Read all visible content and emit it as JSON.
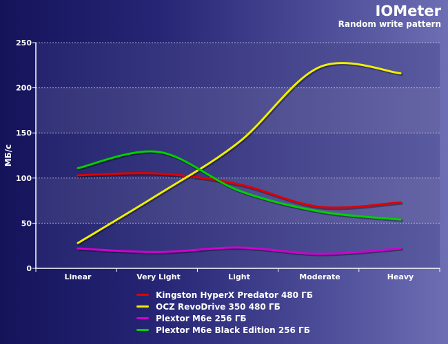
{
  "header": {
    "title": "IOMeter",
    "subtitle": "Random write pattern"
  },
  "chart_data": {
    "type": "line",
    "title": "IOMeter",
    "subtitle": "Random write pattern",
    "xlabel": "",
    "ylabel": "МБ/с",
    "categories": [
      "Linear",
      "Very Light",
      "Light",
      "Moderate",
      "Heavy"
    ],
    "ylim": [
      0,
      250
    ],
    "yticks": [
      0,
      50,
      100,
      150,
      200,
      250
    ],
    "grid": true,
    "legend_position": "bottom",
    "series": [
      {
        "name": "Kingston HyperX Predator 480 ГБ",
        "color": "#e00000",
        "values": [
          103,
          105,
          93,
          68,
          73
        ]
      },
      {
        "name": "OCZ RevoDrive 350 480 ГБ",
        "color": "#f0f000",
        "values": [
          28,
          82,
          140,
          223,
          216
        ]
      },
      {
        "name": "Plextor M6e 256 ГБ",
        "color": "#d000d0",
        "values": [
          22,
          18,
          23,
          16,
          22
        ]
      },
      {
        "name": "Plextor M6e Black Edition 256 ГБ",
        "color": "#00d000",
        "values": [
          111,
          129,
          86,
          63,
          54
        ]
      }
    ]
  }
}
